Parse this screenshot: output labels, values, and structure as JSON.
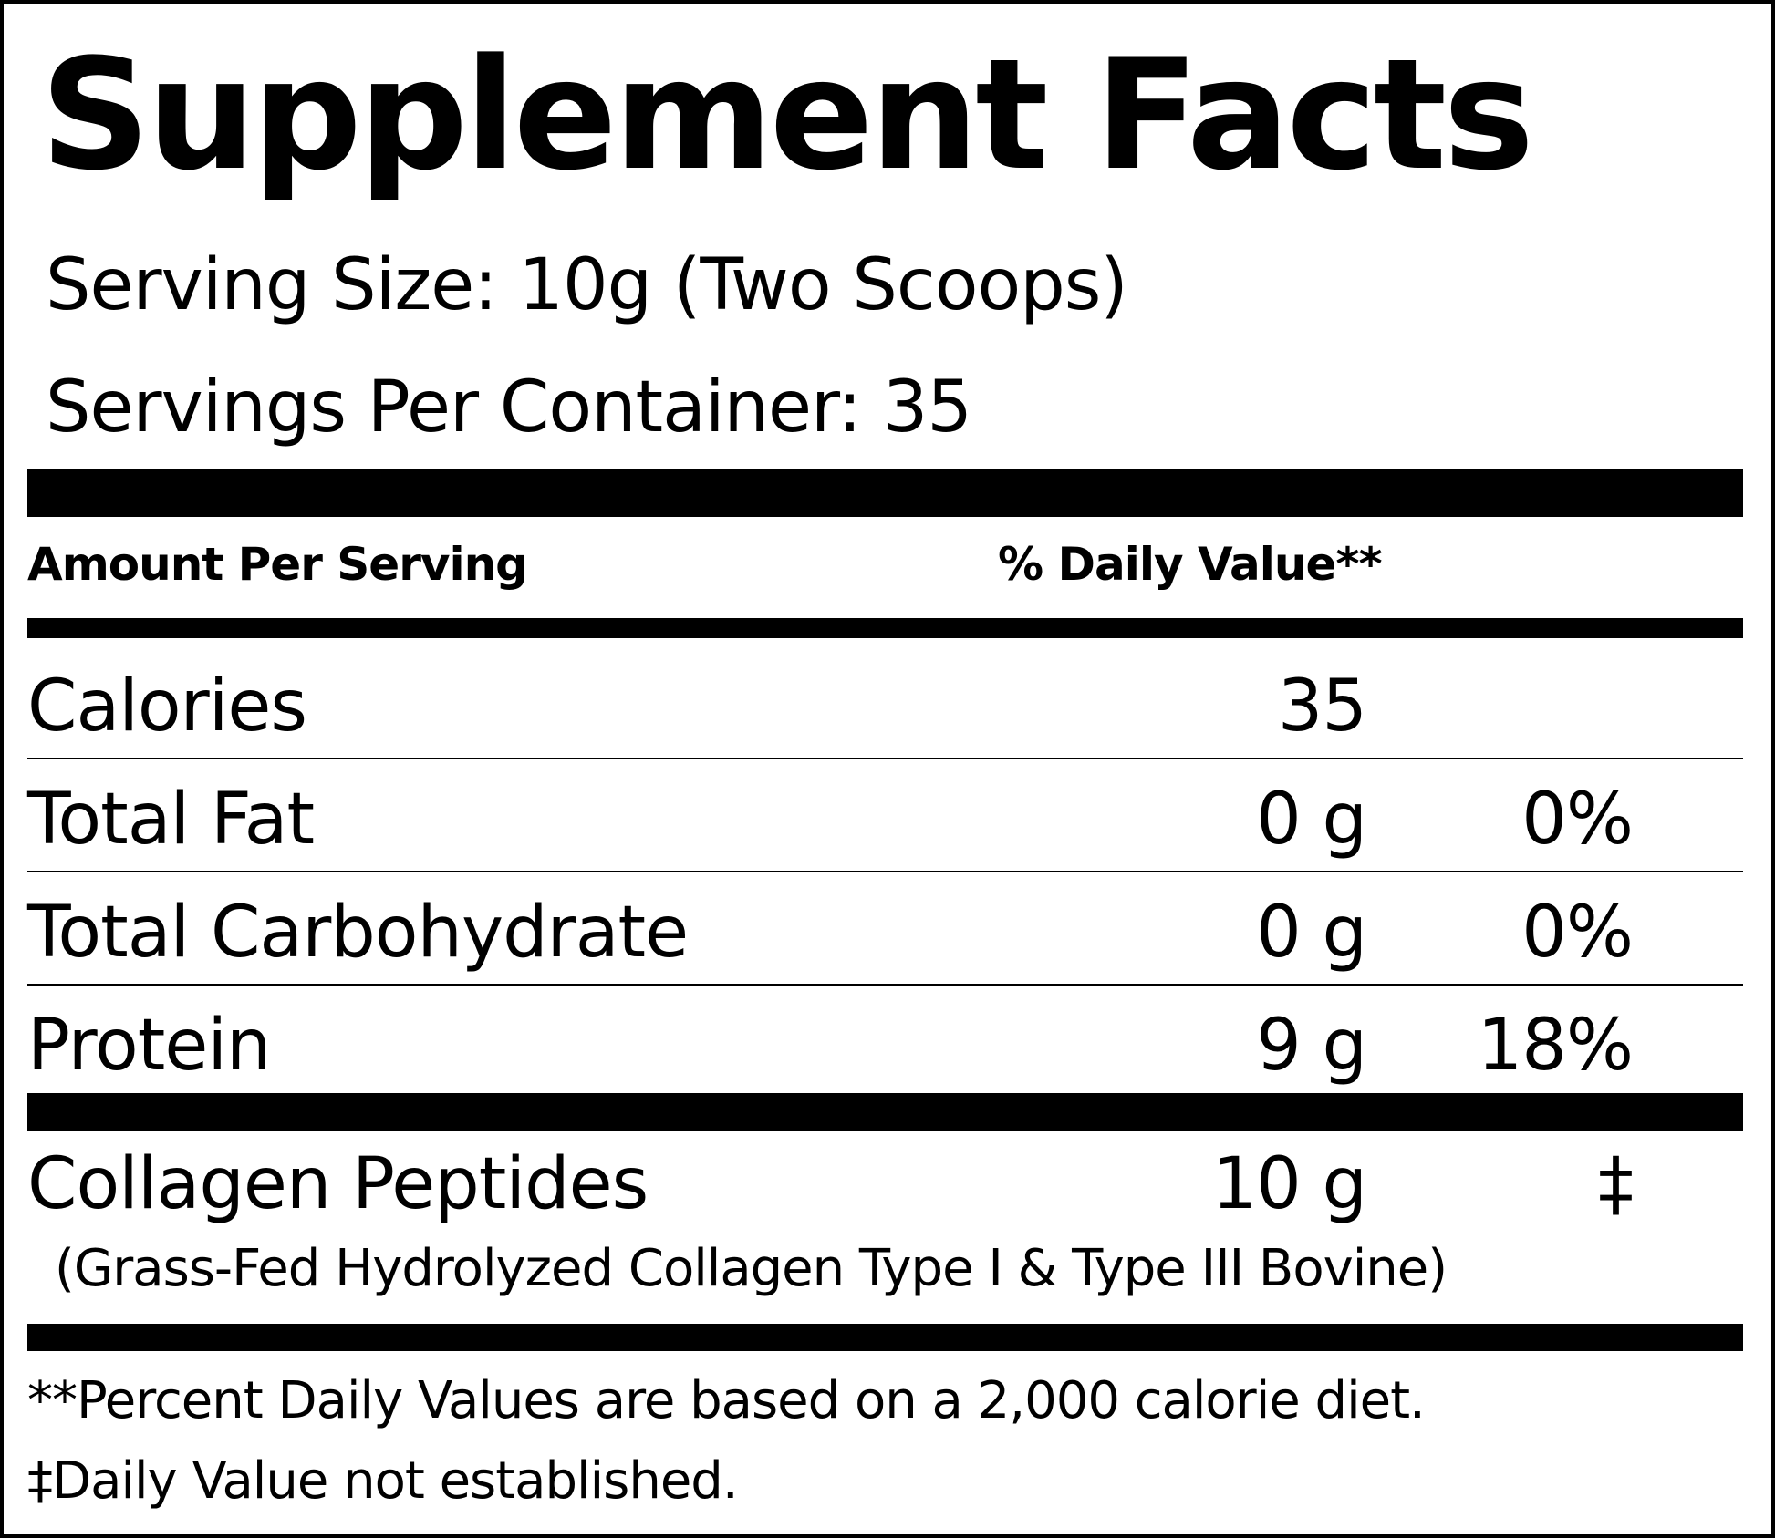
{
  "title": "Supplement Facts",
  "serving_size": "Serving Size: 10g (Two Scoops)",
  "servings_per_container": "Servings Per Container: 35",
  "header": {
    "amount_label": "Amount Per Serving",
    "dv_label": "% Daily Value**"
  },
  "rows": [
    {
      "name": "Calories",
      "amount": "35",
      "dv": ""
    },
    {
      "name": "Total Fat",
      "amount": "0 g",
      "dv": "0%"
    },
    {
      "name": "Total Carbohydrate",
      "amount": "0 g",
      "dv": "0%"
    },
    {
      "name": "Protein",
      "amount": "9 g",
      "dv": "18%"
    }
  ],
  "collagen": {
    "name": "Collagen Peptides",
    "amount": "10 g",
    "dv": "‡",
    "description": "(Grass-Fed Hydrolyzed Collagen Type I & Type III Bovine)"
  },
  "footnotes": [
    "**Percent Daily Values are based on a 2,000 calorie diet.",
    "‡Daily Value not established."
  ]
}
